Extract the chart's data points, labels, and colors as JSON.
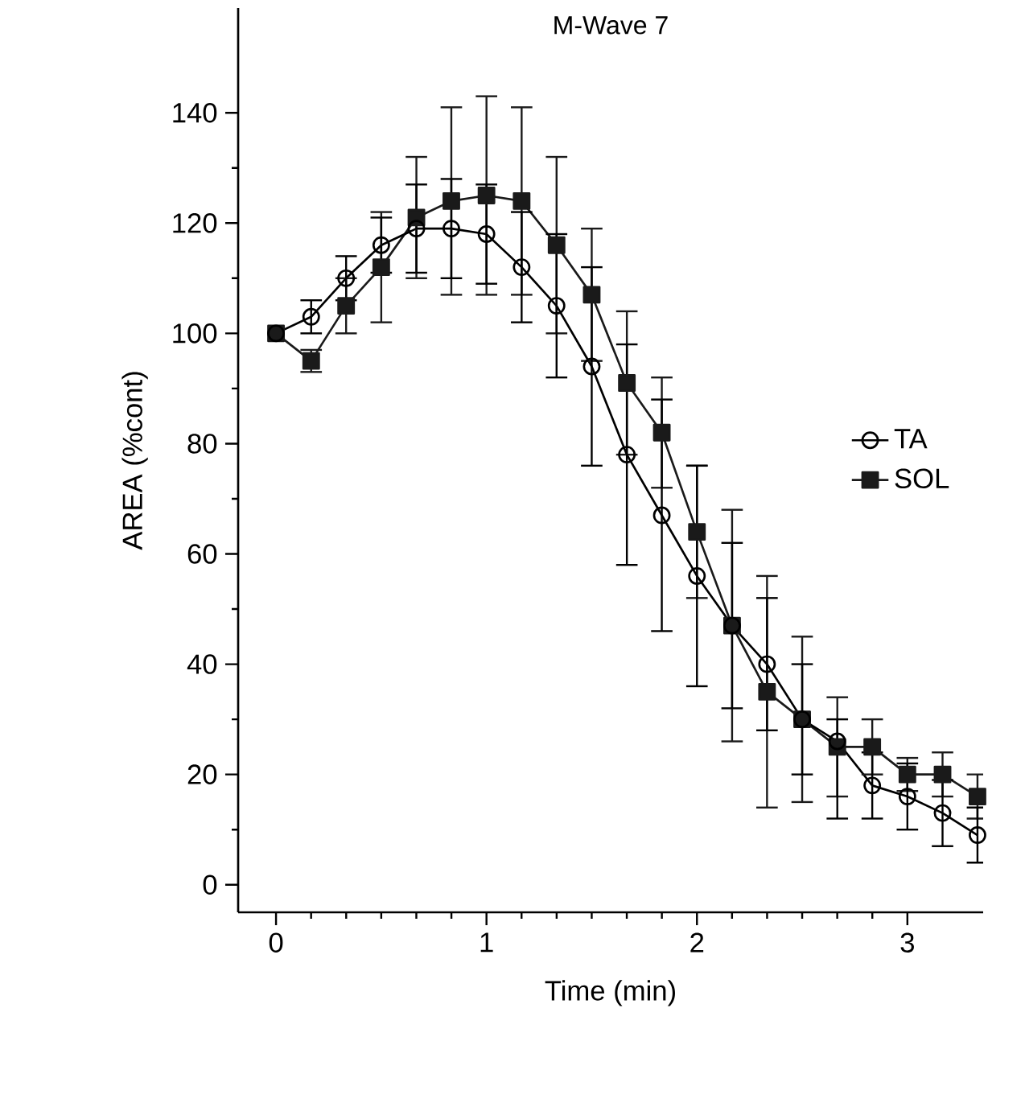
{
  "chart_data": {
    "type": "line",
    "title": "M-Wave 7",
    "xlabel": "Time (min)",
    "ylabel": "AREA (%cont)",
    "x": [
      0,
      0.167,
      0.333,
      0.5,
      0.667,
      0.833,
      1.0,
      1.167,
      1.333,
      1.5,
      1.667,
      1.833,
      2.0,
      2.167,
      2.333,
      2.5,
      2.667,
      2.833,
      3.0,
      3.167,
      3.333
    ],
    "series": [
      {
        "name": "TA",
        "color": "#000000",
        "marker": "circle",
        "values": [
          100,
          103,
          110,
          116,
          119,
          119,
          118,
          112,
          105,
          94,
          78,
          67,
          56,
          47,
          40,
          30,
          26,
          18,
          16,
          13,
          9
        ],
        "errors": [
          null,
          3,
          4,
          5,
          8,
          9,
          9,
          10,
          13,
          18,
          20,
          21,
          20,
          15,
          12,
          10,
          [
            12,
            30
          ],
          6,
          6,
          6,
          5
        ]
      },
      {
        "name": "SOL",
        "color": "#1a1a1a",
        "marker": "square",
        "values": [
          100,
          95,
          105,
          112,
          121,
          124,
          125,
          124,
          116,
          107,
          91,
          82,
          64,
          47,
          35,
          30,
          25,
          25,
          20,
          20,
          16
        ],
        "errors": [
          null,
          2,
          5,
          10,
          11,
          17,
          18,
          17,
          16,
          12,
          13,
          10,
          12,
          21,
          21,
          15,
          9,
          5,
          3,
          4,
          4
        ]
      }
    ],
    "xlim": [
      -0.18,
      3.36
    ],
    "ylim": [
      -5,
      159
    ],
    "xticks": [
      0,
      1,
      2,
      3
    ],
    "yticks": [
      0,
      20,
      40,
      60,
      80,
      100,
      120,
      140
    ],
    "grid": false,
    "legend": "right",
    "line_style": "solid"
  }
}
